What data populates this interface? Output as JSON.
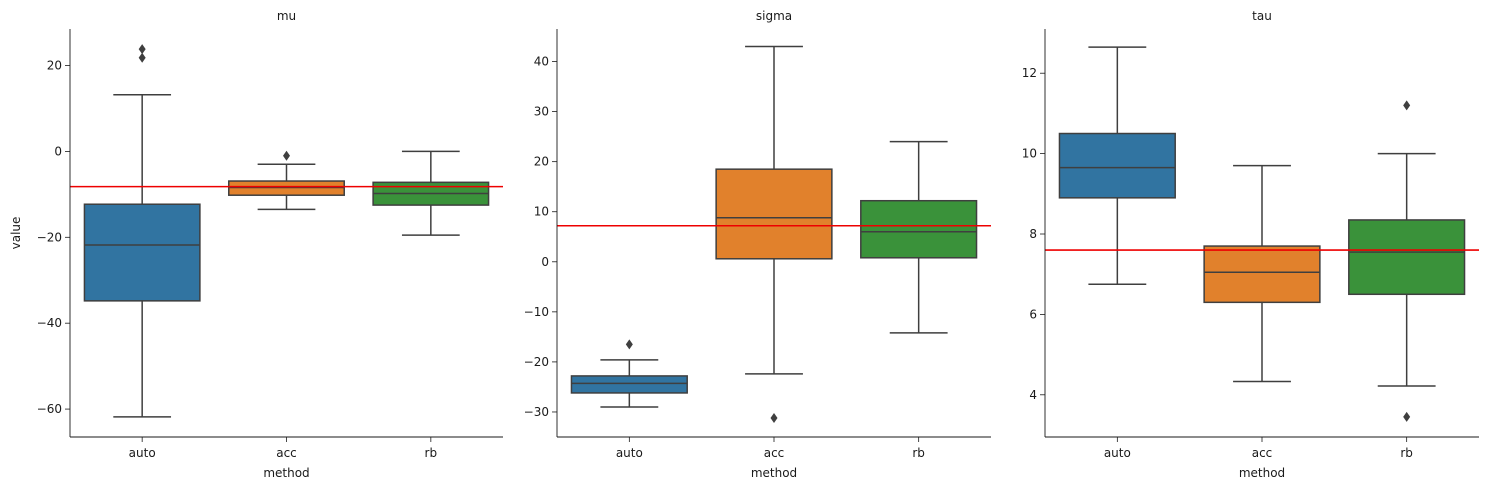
{
  "chart_data": [
    {
      "type": "box",
      "title": "mu",
      "xlabel": "method",
      "ylabel": "value",
      "ylim": [
        -66.5,
        28.5
      ],
      "yticks": [
        20,
        0,
        -20,
        -40,
        -60
      ],
      "ytick_labels": [
        "20",
        "0",
        "−20",
        "−40",
        "−60"
      ],
      "reference_line": -8.2,
      "categories": [
        "auto",
        "acc",
        "rb"
      ],
      "boxes": [
        {
          "category": "auto",
          "color": "#3174a1",
          "q1": -34.8,
          "median": -21.8,
          "q3": -12.3,
          "whisker_low": -61.8,
          "whisker_high": 13.2,
          "outliers": [
            21.8,
            23.8
          ]
        },
        {
          "category": "acc",
          "color": "#e1812c",
          "q1": -10.2,
          "median": -8.4,
          "q3": -6.9,
          "whisker_low": -13.5,
          "whisker_high": -3.0,
          "outliers": [
            -1.0
          ]
        },
        {
          "category": "rb",
          "color": "#3a923a",
          "q1": -12.5,
          "median": -9.8,
          "q3": -7.2,
          "whisker_low": -19.5,
          "whisker_high": 0.0,
          "outliers": []
        }
      ]
    },
    {
      "type": "box",
      "title": "sigma",
      "xlabel": "method",
      "ylabel": "",
      "ylim": [
        -35.0,
        46.5
      ],
      "yticks": [
        40,
        30,
        20,
        10,
        0,
        -10,
        -20,
        -30
      ],
      "ytick_labels": [
        "40",
        "30",
        "20",
        "10",
        "0",
        "−10",
        "−20",
        "−30"
      ],
      "reference_line": 7.2,
      "categories": [
        "auto",
        "acc",
        "rb"
      ],
      "boxes": [
        {
          "category": "auto",
          "color": "#3174a1",
          "q1": -26.2,
          "median": -24.3,
          "q3": -22.8,
          "whisker_low": -29.0,
          "whisker_high": -19.6,
          "outliers": [
            -16.5
          ]
        },
        {
          "category": "acc",
          "color": "#e1812c",
          "q1": 0.6,
          "median": 8.8,
          "q3": 18.5,
          "whisker_low": -22.4,
          "whisker_high": 43.0,
          "outliers": [
            -31.2
          ]
        },
        {
          "category": "rb",
          "color": "#3a923a",
          "q1": 0.8,
          "median": 6.0,
          "q3": 12.2,
          "whisker_low": -14.2,
          "whisker_high": 24.0,
          "outliers": []
        }
      ]
    },
    {
      "type": "box",
      "title": "tau",
      "xlabel": "method",
      "ylabel": "",
      "ylim": [
        2.95,
        13.1
      ],
      "yticks": [
        12,
        10,
        8,
        6,
        4
      ],
      "ytick_labels": [
        "12",
        "10",
        "8",
        "6",
        "4"
      ],
      "reference_line": 7.6,
      "categories": [
        "auto",
        "acc",
        "rb"
      ],
      "boxes": [
        {
          "category": "auto",
          "color": "#3174a1",
          "q1": 8.9,
          "median": 9.65,
          "q3": 10.5,
          "whisker_low": 6.75,
          "whisker_high": 12.65,
          "outliers": []
        },
        {
          "category": "acc",
          "color": "#e1812c",
          "q1": 6.3,
          "median": 7.05,
          "q3": 7.7,
          "whisker_low": 4.33,
          "whisker_high": 9.7,
          "outliers": []
        },
        {
          "category": "rb",
          "color": "#3a923a",
          "q1": 6.5,
          "median": 7.55,
          "q3": 8.35,
          "whisker_low": 4.22,
          "whisker_high": 10.0,
          "outliers": [
            11.2,
            3.45
          ]
        }
      ]
    }
  ]
}
